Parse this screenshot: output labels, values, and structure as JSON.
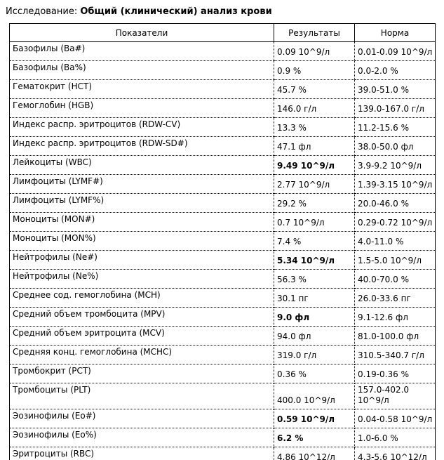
{
  "page": {
    "study_label": "Исследование:",
    "study_name": "Общий (клинический) анализ крови"
  },
  "table": {
    "headers": {
      "indicator": "Показатели",
      "result": "Результаты",
      "norm": "Норма"
    },
    "rows": [
      {
        "indicator": "Базофилы (Ba#)",
        "result": "0.09 10^9/л",
        "result_bold": false,
        "norm": "0.01-0.09 10^9/л"
      },
      {
        "indicator": "Базофилы (Ba%)",
        "result": "0.9 %",
        "result_bold": false,
        "norm": "0.0-2.0 %"
      },
      {
        "indicator": "Гематокрит (HCT)",
        "result": "45.7 %",
        "result_bold": false,
        "norm": "39.0-51.0 %"
      },
      {
        "indicator": "Гемоглобин (HGB)",
        "result": "146.0 г/л",
        "result_bold": false,
        "norm": "139.0-167.0 г/л"
      },
      {
        "indicator": "Индекс распр. эритроцитов (RDW-CV)",
        "result": "13.3 %",
        "result_bold": false,
        "norm": "11.2-15.6 %"
      },
      {
        "indicator": "Индекс распр. эритроцитов (RDW-SD#)",
        "result": "47.1 фл",
        "result_bold": false,
        "norm": "38.0-50.0 фл"
      },
      {
        "indicator": "Лейкоциты (WBC)",
        "result": "9.49 10^9/л",
        "result_bold": true,
        "norm": "3.9-9.2 10^9/л"
      },
      {
        "indicator": "Лимфоциты (LYMF#)",
        "result": "2.77 10^9/л",
        "result_bold": false,
        "norm": "1.39-3.15 10^9/л"
      },
      {
        "indicator": "Лимфоциты (LYMF%)",
        "result": "29.2 %",
        "result_bold": false,
        "norm": "20.0-46.0 %"
      },
      {
        "indicator": "Моноциты (MON#)",
        "result": "0.7 10^9/л",
        "result_bold": false,
        "norm": "0.29-0.72 10^9/л"
      },
      {
        "indicator": "Моноциты (MON%)",
        "result": "7.4 %",
        "result_bold": false,
        "norm": "4.0-11.0 %"
      },
      {
        "indicator": "Нейтрофилы (Ne#)",
        "result": "5.34 10^9/л",
        "result_bold": true,
        "norm": "1.5-5.0 10^9/л"
      },
      {
        "indicator": "Нейтрофилы (Ne%)",
        "result": "56.3 %",
        "result_bold": false,
        "norm": "40.0-70.0 %"
      },
      {
        "indicator": "Среднее сод. гемоглобина (MCH)",
        "result": "30.1 пг",
        "result_bold": false,
        "norm": "26.0-33.6 пг"
      },
      {
        "indicator": "Средний объем тромбоцита (MPV)",
        "result": "9.0 фл",
        "result_bold": true,
        "norm": "9.1-12.6 фл"
      },
      {
        "indicator": "Средний объем эритроцита (MCV)",
        "result": "94.0 фл",
        "result_bold": false,
        "norm": "81.0-100.0 фл"
      },
      {
        "indicator": "Средняя конц. гемоглобина (MCHC)",
        "result": "319.0 г/л",
        "result_bold": false,
        "norm": "310.5-340.7 г/л"
      },
      {
        "indicator": "Тромбокрит (PCT)",
        "result": "0.36 %",
        "result_bold": false,
        "norm": "0.19-0.36 %"
      },
      {
        "indicator": "Тромбоциты (PLT)",
        "result": "400.0 10^9/л",
        "result_bold": false,
        "norm": "157.0-402.0 10^9/л"
      },
      {
        "indicator": "Эозинофилы (Eo#)",
        "result": "0.59 10^9/л",
        "result_bold": true,
        "norm": "0.04-0.58 10^9/л"
      },
      {
        "indicator": "Эозинофилы (Eo%)",
        "result": "6.2 %",
        "result_bold": true,
        "norm": "1.0-6.0 %"
      },
      {
        "indicator": "Эритроциты (RBC)",
        "result": "4.86 10^12/л",
        "result_bold": false,
        "norm": "4.3-5.6 10^12/л"
      }
    ]
  }
}
